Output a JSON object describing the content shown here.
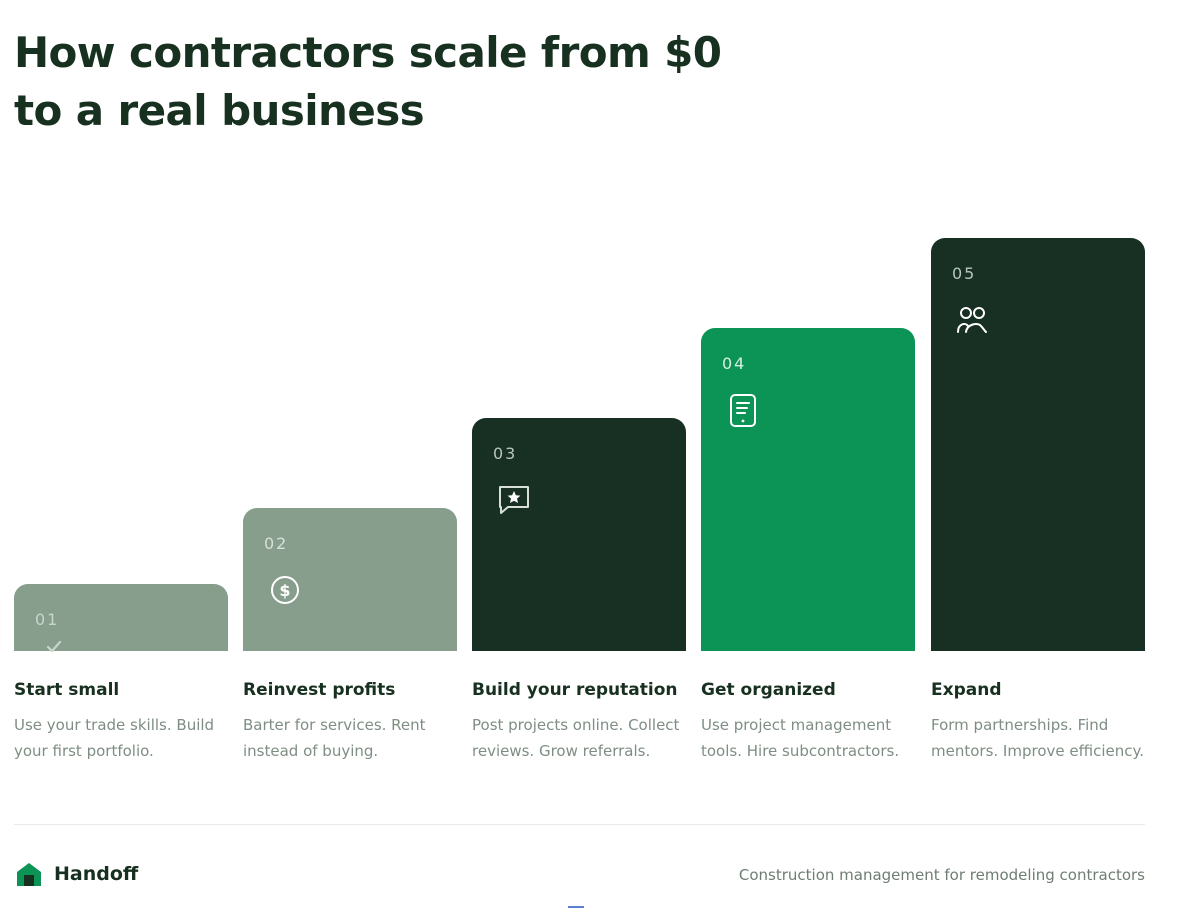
{
  "title": {
    "line1": "How contractors scale from $0",
    "line2": "to a real business"
  },
  "steps": [
    {
      "number": "01",
      "title": "Start small",
      "desc_line1": "Use your trade skills. Build",
      "desc_line2": "your first portfolio.",
      "icon": "checkmark-icon",
      "bar_color": "#879e8d",
      "text_color": "#c9d5cc"
    },
    {
      "number": "02",
      "title": "Reinvest profits",
      "desc_line1": "Barter for services. Rent",
      "desc_line2": "instead of buying.",
      "icon": "dollar-coin-icon",
      "bar_color": "#879e8d",
      "text_color": "#d6e0d9"
    },
    {
      "number": "03",
      "title": "Build your reputation",
      "desc_line1": "Post projects online. Collect",
      "desc_line2": "reviews. Grow referrals.",
      "icon": "star-review-icon",
      "bar_color": "#182f23",
      "text_color": "#b9c6bd"
    },
    {
      "number": "04",
      "title": "Get organized",
      "desc_line1": "Use project management",
      "desc_line2": "tools. Hire subcontractors.",
      "icon": "clipboard-device-icon",
      "bar_color": "#0c9457",
      "text_color": "#d6f0e2"
    },
    {
      "number": "05",
      "title": "Expand",
      "desc_line1": "Form partnerships. Find",
      "desc_line2": "mentors. Improve efficiency.",
      "icon": "team-icon",
      "bar_color": "#182f23",
      "text_color": "#b9c6bd"
    }
  ],
  "footer": {
    "brand_name": "Handoff",
    "logo_icon": "house-logo-icon",
    "tagline": "Construction management for remodeling contractors",
    "accent_color": "#0c9457"
  }
}
